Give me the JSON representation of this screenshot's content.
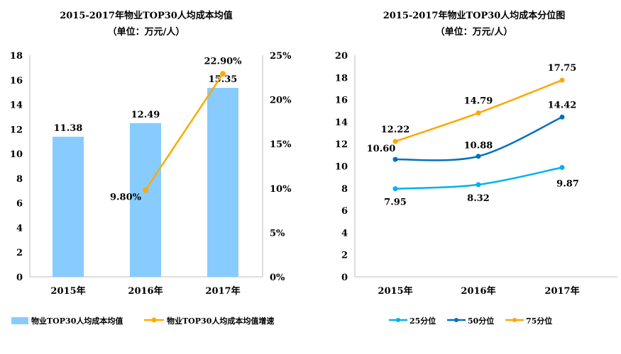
{
  "chart_data": [
    {
      "type": "bar+line",
      "title": "2015-2017年物业TOP30人均成本均值",
      "subtitle": "（单位：万元/人）",
      "categories": [
        "2015年",
        "2016年",
        "2017年"
      ],
      "series": [
        {
          "name": "物业TOP30人均成本均值",
          "type": "bar",
          "axis": "left",
          "color": "#88CCFF",
          "values": [
            11.38,
            12.49,
            15.35
          ],
          "labels": [
            "11.38",
            "12.49",
            "15.35"
          ]
        },
        {
          "name": "物业TOP30人均成本均值增速",
          "type": "line",
          "axis": "right",
          "color": "#FFAA00",
          "values": [
            null,
            9.8,
            22.9
          ],
          "labels": [
            null,
            "9.80%",
            "22.90%"
          ]
        }
      ],
      "ylim": [
        0,
        18
      ],
      "yticks": [
        "0",
        "2",
        "4",
        "6",
        "8",
        "10",
        "12",
        "14",
        "16",
        "18"
      ],
      "y2lim": [
        0,
        25
      ],
      "y2ticks": [
        "0%",
        "5%",
        "10%",
        "15%",
        "20%",
        "25%"
      ],
      "legend": "bottom"
    },
    {
      "type": "line",
      "title": "2015-2017年物业TOP30人均成本分位图",
      "subtitle": "（单位：万元/人）",
      "categories": [
        "2015年",
        "2016年",
        "2017年"
      ],
      "series": [
        {
          "name": "25分位",
          "color": "#00B0F0",
          "values": [
            7.95,
            8.32,
            9.87
          ],
          "labels": [
            "7.95",
            "8.32",
            "9.87"
          ]
        },
        {
          "name": "50分位",
          "color": "#0070C0",
          "values": [
            10.6,
            10.88,
            14.42
          ],
          "labels": [
            "10.60",
            "10.88",
            "14.42"
          ]
        },
        {
          "name": "75分位",
          "color": "#FFA500",
          "values": [
            12.22,
            14.79,
            17.75
          ],
          "labels": [
            "12.22",
            "14.79",
            "17.75"
          ]
        }
      ],
      "ylim": [
        0,
        20
      ],
      "yticks": [
        "0",
        "2",
        "4",
        "6",
        "8",
        "10",
        "12",
        "14",
        "16",
        "18",
        "20"
      ],
      "legend": "bottom"
    }
  ]
}
